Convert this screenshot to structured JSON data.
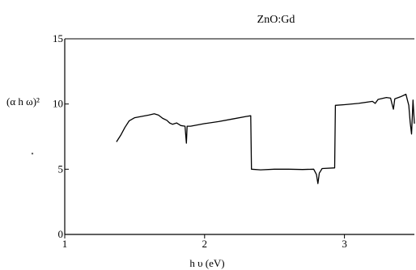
{
  "chart_data": {
    "type": "line",
    "title": "ZnO:Gd",
    "xlabel": "h υ (eV)",
    "ylabel": "(α h ω)²",
    "xlim": [
      1,
      3.5
    ],
    "ylim": [
      0,
      15
    ],
    "xticks": [
      1,
      2,
      3
    ],
    "yticks": [
      0,
      5,
      10,
      15
    ],
    "grid": false,
    "series": [
      {
        "color": "#000000",
        "points": [
          [
            1.37,
            7.1
          ],
          [
            1.4,
            7.6
          ],
          [
            1.43,
            8.2
          ],
          [
            1.46,
            8.7
          ],
          [
            1.5,
            8.95
          ],
          [
            1.55,
            9.05
          ],
          [
            1.6,
            9.15
          ],
          [
            1.64,
            9.25
          ],
          [
            1.67,
            9.15
          ],
          [
            1.7,
            8.9
          ],
          [
            1.73,
            8.75
          ],
          [
            1.75,
            8.55
          ],
          [
            1.77,
            8.45
          ],
          [
            1.8,
            8.55
          ],
          [
            1.83,
            8.35
          ],
          [
            1.86,
            8.3
          ],
          [
            1.87,
            7.0
          ],
          [
            1.875,
            8.3
          ],
          [
            1.9,
            8.3
          ],
          [
            2.0,
            8.5
          ],
          [
            2.1,
            8.65
          ],
          [
            2.2,
            8.85
          ],
          [
            2.3,
            9.05
          ],
          [
            2.33,
            9.1
          ],
          [
            2.335,
            5.0
          ],
          [
            2.4,
            4.95
          ],
          [
            2.5,
            5.0
          ],
          [
            2.6,
            5.0
          ],
          [
            2.7,
            4.98
          ],
          [
            2.78,
            5.0
          ],
          [
            2.8,
            4.6
          ],
          [
            2.81,
            3.9
          ],
          [
            2.82,
            4.7
          ],
          [
            2.84,
            5.05
          ],
          [
            2.93,
            5.1
          ],
          [
            2.935,
            9.9
          ],
          [
            3.0,
            9.95
          ],
          [
            3.1,
            10.05
          ],
          [
            3.2,
            10.2
          ],
          [
            3.22,
            10.05
          ],
          [
            3.24,
            10.35
          ],
          [
            3.3,
            10.5
          ],
          [
            3.33,
            10.45
          ],
          [
            3.34,
            10.0
          ],
          [
            3.35,
            9.6
          ],
          [
            3.36,
            10.4
          ],
          [
            3.4,
            10.55
          ],
          [
            3.44,
            10.75
          ],
          [
            3.45,
            10.3
          ],
          [
            3.46,
            9.9
          ],
          [
            3.47,
            8.6
          ],
          [
            3.48,
            7.7
          ],
          [
            3.49,
            10.3
          ],
          [
            3.5,
            8.5
          ]
        ]
      }
    ]
  }
}
